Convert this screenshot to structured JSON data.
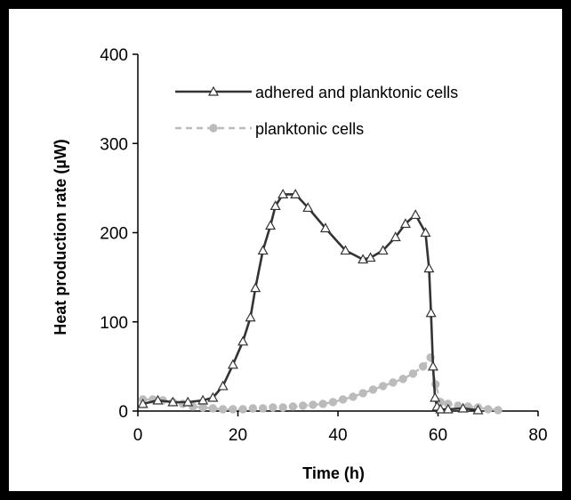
{
  "chart_data": {
    "type": "line",
    "title": "",
    "xlabel": "Time (h)",
    "ylabel": "Heat production rate (µW)",
    "xlim": [
      0,
      80
    ],
    "ylim": [
      0,
      400
    ],
    "xticks": [
      "0",
      "20",
      "40",
      "60",
      "80"
    ],
    "yticks": [
      "0",
      "100",
      "200",
      "300",
      "400"
    ],
    "grid": false,
    "legend_position": "top-right",
    "series": [
      {
        "name": "adhered and planktonic cells",
        "color": "#333333",
        "marker": "triangle-open",
        "line": "solid",
        "x": [
          1,
          4,
          7,
          10,
          13,
          15,
          17,
          19,
          21,
          22.5,
          23.5,
          25,
          26.5,
          27.5,
          29,
          31.5,
          34,
          37.5,
          41.5,
          45,
          46.5,
          49,
          51.5,
          53.5,
          55.5,
          57.5,
          58.2,
          58.6,
          59,
          59.4,
          59.8,
          60.5,
          62,
          65,
          68
        ],
        "y": [
          8,
          12,
          10,
          10,
          12,
          15,
          28,
          52,
          78,
          105,
          138,
          180,
          208,
          230,
          243,
          243,
          228,
          205,
          180,
          170,
          172,
          180,
          195,
          210,
          220,
          200,
          160,
          110,
          50,
          15,
          5,
          2,
          2,
          3,
          1
        ]
      },
      {
        "name": "planktonic cells",
        "color": "#bbbbbb",
        "marker": "circle-filled",
        "line": "dashed",
        "x": [
          1,
          3,
          5,
          7,
          9,
          11,
          13,
          15,
          17,
          19,
          21,
          23,
          25,
          27,
          29,
          31,
          33,
          35,
          37,
          39,
          41,
          43,
          45,
          47,
          49,
          51,
          53,
          55,
          57,
          58.5,
          59.5,
          60.5,
          62,
          64,
          66,
          68,
          70,
          72
        ],
        "y": [
          13,
          13,
          12,
          10,
          8,
          5,
          4,
          3,
          2,
          2,
          2,
          3,
          3,
          4,
          4,
          5,
          6,
          7,
          8,
          10,
          13,
          16,
          20,
          24,
          28,
          32,
          36,
          42,
          50,
          60,
          30,
          10,
          8,
          6,
          5,
          4,
          2,
          1
        ]
      }
    ]
  }
}
